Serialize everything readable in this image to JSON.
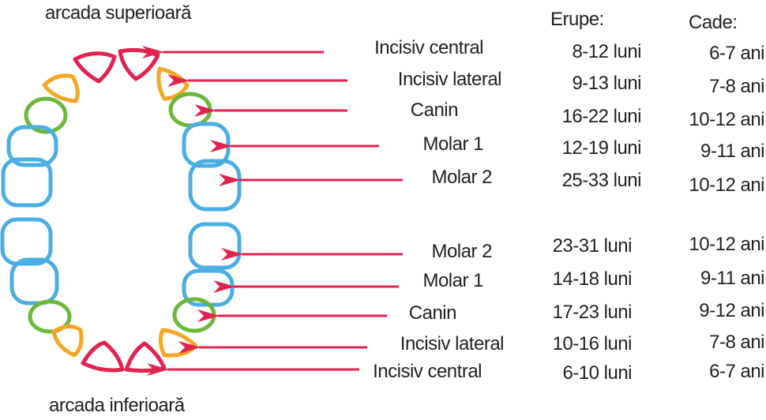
{
  "arch_labels": {
    "upper": "arcada superioară",
    "lower": "arcada inferioară"
  },
  "headers": {
    "erupt": "Erupe:",
    "fall": "Cade:"
  },
  "colors": {
    "incisor_central": "#e0234f",
    "incisor_lateral": "#f5a623",
    "canine": "#6cb83a",
    "molar": "#4aaee3",
    "arrow": "#e0234f"
  },
  "upper": [
    {
      "tooth": "Incisiv central",
      "erupt": "8-12 luni",
      "fall": "6-7 ani"
    },
    {
      "tooth": "Incisiv lateral",
      "erupt": "9-13 luni",
      "fall": "7-8 ani"
    },
    {
      "tooth": "Canin",
      "erupt": "16-22 luni",
      "fall": "10-12 ani"
    },
    {
      "tooth": "Molar 1",
      "erupt": "12-19 luni",
      "fall": "9-11 ani"
    },
    {
      "tooth": "Molar 2",
      "erupt": "25-33 luni",
      "fall": "10-12 ani"
    }
  ],
  "lower": [
    {
      "tooth": "Molar 2",
      "erupt": "23-31 luni",
      "fall": "10-12 ani"
    },
    {
      "tooth": "Molar 1",
      "erupt": "14-18 luni",
      "fall": "9-11 ani"
    },
    {
      "tooth": "Canin",
      "erupt": "17-23 luni",
      "fall": "9-12 ani"
    },
    {
      "tooth": "Incisiv lateral",
      "erupt": "10-16 luni",
      "fall": "7-8 ani"
    },
    {
      "tooth": "Incisiv central",
      "erupt": "6-10 luni",
      "fall": "6-7 ani"
    }
  ]
}
